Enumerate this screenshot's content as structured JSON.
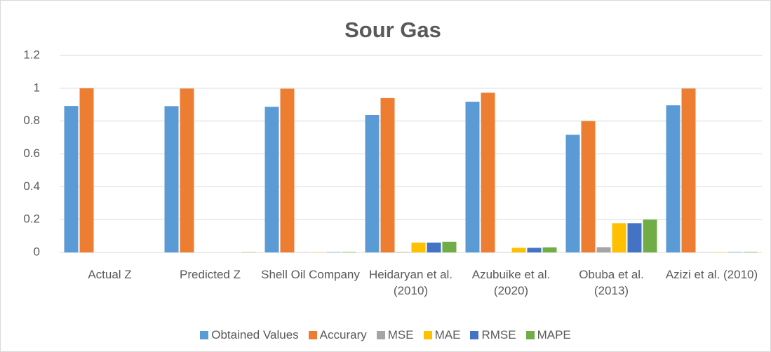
{
  "chart_data": {
    "type": "bar",
    "title": "Sour Gas",
    "categories": [
      "Actual Z",
      "Predicted Z",
      "Shell Oil Company",
      "Heidaryan et al. (2010)",
      "Azubuike et al. (2020)",
      "Obuba et al. (2013)",
      "Azizi et al. (2010)"
    ],
    "series": [
      {
        "name": "Obtained Values",
        "color": "#5b9bd5",
        "values": [
          0.892,
          0.891,
          0.887,
          0.837,
          0.918,
          0.717,
          0.896
        ]
      },
      {
        "name": "Accurary",
        "color": "#ed7d31",
        "values": [
          1.0,
          0.998,
          0.997,
          0.94,
          0.973,
          0.8,
          0.998
        ]
      },
      {
        "name": "MSE",
        "color": "#a5a5a5",
        "values": [
          0,
          0,
          0.001,
          0.003,
          0.001,
          0.032,
          0.001
        ]
      },
      {
        "name": "MAE",
        "color": "#ffc000",
        "values": [
          0,
          0,
          0.002,
          0.06,
          0.028,
          0.178,
          0.002
        ]
      },
      {
        "name": "RMSE",
        "color": "#4472c4",
        "values": [
          0,
          0,
          0.002,
          0.06,
          0.028,
          0.178,
          0.002
        ]
      },
      {
        "name": "MAPE",
        "color": "#70ad47",
        "values": [
          0,
          0.002,
          0.003,
          0.065,
          0.031,
          0.2,
          0.003
        ]
      }
    ],
    "ylim": [
      0,
      1.2
    ],
    "yticks": [
      0,
      0.2,
      0.4,
      0.6,
      0.8,
      1,
      1.2
    ],
    "grid": true,
    "legend": "bottom"
  }
}
